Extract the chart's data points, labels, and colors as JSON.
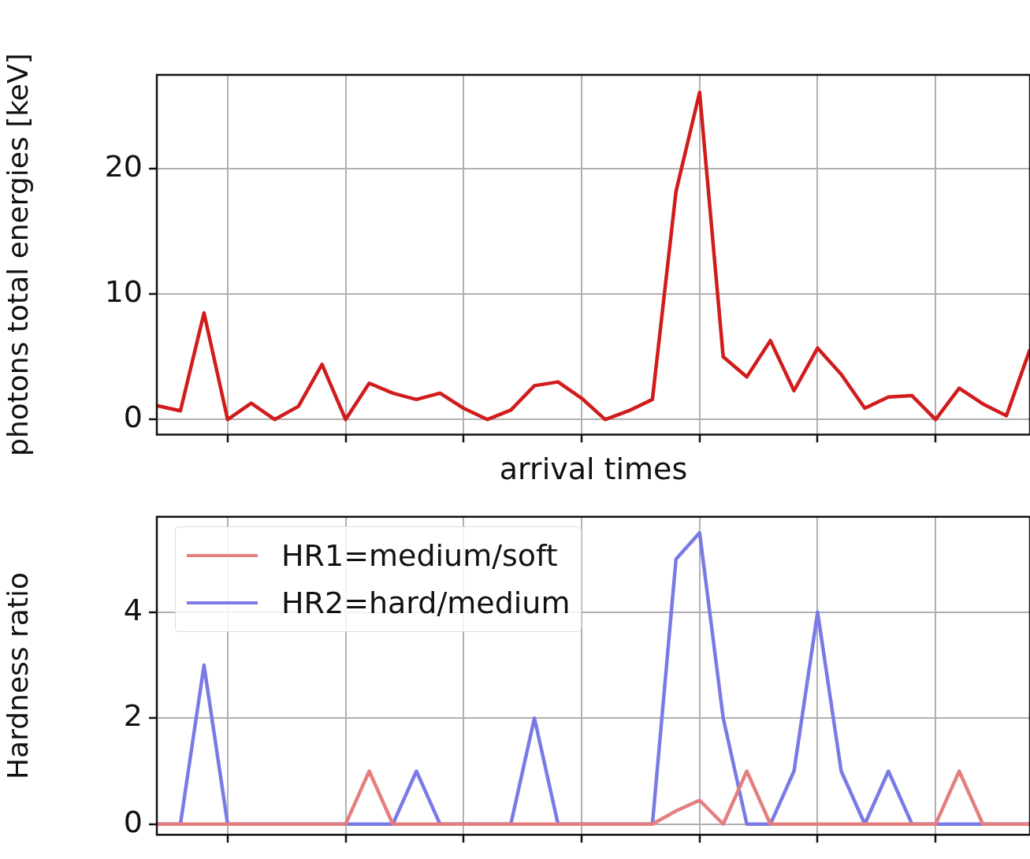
{
  "chart_data": [
    {
      "type": "line",
      "xlabel": "arrival times",
      "ylabel": "photons total energies [keV]",
      "categories": [
        null,
        null,
        null,
        null,
        null,
        null,
        null,
        null,
        null,
        null,
        null,
        null,
        null,
        null,
        null,
        null,
        null,
        null,
        null,
        null,
        null,
        null,
        null,
        null,
        null,
        null,
        null,
        null,
        null,
        null,
        null,
        null,
        null,
        null,
        null,
        null,
        null,
        null
      ],
      "series": [
        {
          "color": "#d01c1c",
          "values": [
            1.1,
            0.7,
            8.5,
            0,
            1.3,
            0,
            1.05,
            4.4,
            0,
            2.9,
            2.1,
            1.6,
            2.1,
            0.9,
            0,
            0.75,
            2.7,
            3.0,
            1.7,
            0,
            0.7,
            1.6,
            18.2,
            26.1,
            5.0,
            3.4,
            6.3,
            2.3,
            5.7,
            3.6,
            0.9,
            1.8,
            1.9,
            0,
            2.5,
            1.25,
            0.3,
            5.6
          ]
        }
      ],
      "ylim": [
        -1.2,
        27.5
      ],
      "yticks": [
        0,
        10,
        20
      ],
      "grid": true,
      "tick_labels": "y",
      "legend": false
    },
    {
      "type": "line",
      "ylabel": "Hardness ratio",
      "categories": [
        null,
        null,
        null,
        null,
        null,
        null,
        null,
        null,
        null,
        null,
        null,
        null,
        null,
        null,
        null,
        null,
        null,
        null,
        null,
        null,
        null,
        null,
        null,
        null,
        null,
        null,
        null,
        null,
        null,
        null,
        null,
        null,
        null,
        null,
        null,
        null,
        null,
        null
      ],
      "series": [
        {
          "name": "HR1=medium/soft",
          "color": "#e57f7f",
          "values": [
            0,
            0,
            0,
            0,
            0,
            0,
            0,
            0,
            0,
            1,
            0,
            0,
            0,
            0,
            0,
            0,
            0,
            0,
            0,
            0,
            0,
            0,
            0.25,
            0.45,
            0,
            1,
            0,
            0,
            0,
            0,
            0,
            0,
            0,
            0,
            1,
            0,
            0,
            0
          ]
        },
        {
          "name": "HR2=hard/medium",
          "color": "#7a7ae6",
          "values": [
            0,
            0,
            3,
            0,
            0,
            0,
            0,
            0,
            0,
            0,
            0,
            1,
            0,
            0,
            0,
            0,
            2,
            0,
            0,
            0,
            0,
            0,
            5,
            5.5,
            2,
            0,
            0,
            1,
            4,
            1,
            0,
            1,
            0,
            0,
            0,
            0,
            0,
            0
          ]
        }
      ],
      "ylim": [
        -0.2,
        5.8
      ],
      "yticks": [
        0,
        2,
        4
      ],
      "grid": true,
      "tick_labels": "y",
      "legend": "top left"
    }
  ]
}
